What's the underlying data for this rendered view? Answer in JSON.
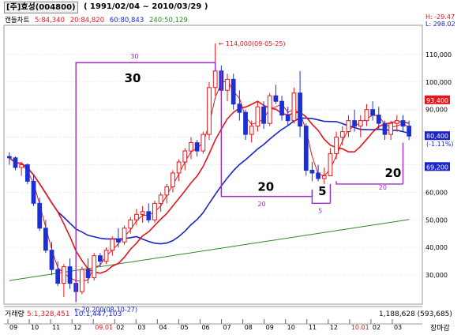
{
  "header": {
    "stock": "[주]효성(004800)",
    "range": "( 1991/02/04 ~ 2010/03/29 )"
  },
  "legend": {
    "title": "캔들차트",
    "ma5": "5:84,340",
    "ma20": "20:84,820",
    "ma60": "60:80,843",
    "ma240": "240:50,129"
  },
  "hl": {
    "high": "H: -29.47",
    "low": "L: 298.02"
  },
  "volume": {
    "title": "거래량",
    "ma5": "5:1,328,451",
    "ma10": "10:1,447,103",
    "value": "1,188,628 (593,685)"
  },
  "footer": {
    "label": "장마감"
  },
  "colors": {
    "up": "#e8141b",
    "down": "#1c2fd6",
    "ma5": "#e8141b",
    "ma20": "#e8141b",
    "ma60": "#1a24c8",
    "ma240": "#2e8b2e",
    "annot": "#9b30c0"
  },
  "chart_data": {
    "type": "candlestick",
    "ylim": [
      20000,
      120000
    ],
    "yticks": [
      "110,000",
      "100,000",
      "90,000",
      "80,000",
      "70,000",
      "60,000",
      "50,000",
      "40,000",
      "30,000"
    ],
    "xticks": [
      "09",
      "10",
      "11",
      "12",
      "09.01",
      "02",
      "03",
      "04",
      "05",
      "06",
      "07",
      "08",
      "09",
      "10",
      "11",
      "12",
      "10.01",
      "02",
      "03"
    ],
    "red_xticks": [
      "09.01",
      "10.01"
    ],
    "candles": [
      [
        73000,
        74500,
        70000,
        72500
      ],
      [
        72500,
        73000,
        68000,
        69000
      ],
      [
        69000,
        71000,
        66000,
        70000
      ],
      [
        70000,
        70500,
        63000,
        64000
      ],
      [
        64000,
        66000,
        55000,
        56000
      ],
      [
        56000,
        58000,
        46000,
        47000
      ],
      [
        47000,
        50000,
        38000,
        39000
      ],
      [
        39000,
        42000,
        30000,
        32000
      ],
      [
        32000,
        35000,
        26000,
        27000
      ],
      [
        27000,
        34000,
        22000,
        33000
      ],
      [
        33000,
        36000,
        25000,
        27000
      ],
      [
        27000,
        31000,
        20200,
        24000
      ],
      [
        24000,
        33000,
        23000,
        32000
      ],
      [
        32000,
        36000,
        27000,
        29000
      ],
      [
        29000,
        38000,
        28000,
        37000
      ],
      [
        37000,
        38000,
        33000,
        35000
      ],
      [
        35000,
        40000,
        34000,
        39000
      ],
      [
        39000,
        44000,
        37000,
        43000
      ],
      [
        43000,
        47000,
        40000,
        42000
      ],
      [
        42000,
        48000,
        41000,
        47000
      ],
      [
        47000,
        51000,
        45000,
        50000
      ],
      [
        50000,
        54000,
        48000,
        52000
      ],
      [
        52000,
        55000,
        49000,
        53000
      ],
      [
        53000,
        56000,
        49000,
        50000
      ],
      [
        50000,
        57000,
        49000,
        56000
      ],
      [
        56000,
        60000,
        53000,
        59000
      ],
      [
        59000,
        63000,
        56000,
        62000
      ],
      [
        62000,
        68000,
        60000,
        67000
      ],
      [
        67000,
        72000,
        64000,
        71000
      ],
      [
        71000,
        76000,
        68000,
        75000
      ],
      [
        75000,
        80000,
        72000,
        78000
      ],
      [
        78000,
        79000,
        73000,
        75000
      ],
      [
        75000,
        82000,
        74000,
        81000
      ],
      [
        81000,
        100000,
        79000,
        98000
      ],
      [
        98000,
        114000,
        95000,
        104000
      ],
      [
        104000,
        106000,
        95000,
        97000
      ],
      [
        97000,
        103000,
        93000,
        101000
      ],
      [
        101000,
        103000,
        90000,
        92000
      ],
      [
        92000,
        97000,
        86000,
        89000
      ],
      [
        89000,
        90000,
        79000,
        81000
      ],
      [
        81000,
        86000,
        78000,
        84000
      ],
      [
        84000,
        93000,
        82000,
        91000
      ],
      [
        91000,
        93000,
        83000,
        85000
      ],
      [
        85000,
        96000,
        84000,
        95000
      ],
      [
        95000,
        99000,
        92000,
        93000
      ],
      [
        93000,
        95000,
        86000,
        88000
      ],
      [
        88000,
        91000,
        84000,
        86000
      ],
      [
        86000,
        98000,
        85000,
        96000
      ],
      [
        96000,
        104000,
        80000,
        84000
      ],
      [
        84000,
        85000,
        66000,
        68000
      ],
      [
        68000,
        71000,
        64000,
        67000
      ],
      [
        67000,
        70000,
        64000,
        65000
      ],
      [
        65000,
        69000,
        63000,
        66000
      ],
      [
        66000,
        76000,
        66000,
        74000
      ],
      [
        74000,
        82000,
        72000,
        80000
      ],
      [
        80000,
        84000,
        77000,
        82000
      ],
      [
        82000,
        88000,
        80000,
        86000
      ],
      [
        86000,
        90000,
        82000,
        84000
      ],
      [
        84000,
        88000,
        80000,
        86000
      ],
      [
        86000,
        92000,
        84000,
        90000
      ],
      [
        90000,
        93000,
        86000,
        88000
      ],
      [
        88000,
        91000,
        83000,
        85000
      ],
      [
        85000,
        86000,
        79000,
        81000
      ],
      [
        81000,
        86000,
        79000,
        85000
      ],
      [
        85000,
        88000,
        82000,
        86000
      ],
      [
        86000,
        88000,
        82000,
        84000
      ],
      [
        84000,
        86000,
        79000,
        80400
      ]
    ],
    "annotations": {
      "high_label": "← 114,000(09-05-25)",
      "low_label": "← 20,200(08-10-27)",
      "wave_labels": [
        "30",
        "20",
        "5",
        "20"
      ],
      "small_labels": [
        "30",
        "20",
        "5",
        "20"
      ],
      "price_tags": [
        "93,400",
        "80,400",
        "(-1.11%)",
        "69,200"
      ]
    }
  }
}
